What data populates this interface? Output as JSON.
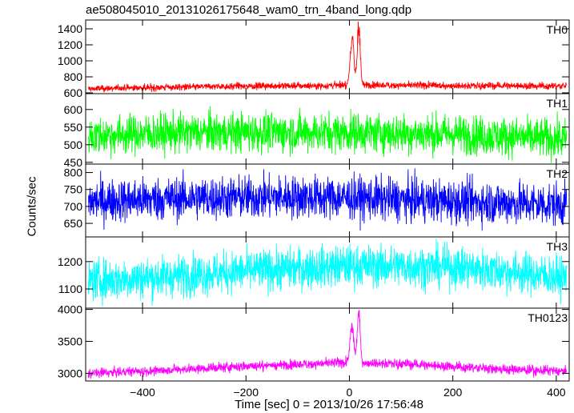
{
  "chart_data": {
    "type": "line",
    "title": "ae508045010_20131026175648_wam0_trn_4band_long.qdp",
    "xlabel": "Time [sec] 0 = 2013/10/26 17:56:48",
    "ylabel": "Counts/sec",
    "xlim": [
      -510,
      425
    ],
    "xticks": [
      -400,
      -200,
      0,
      200,
      400
    ],
    "xtick_labels": [
      "−400",
      "−200",
      "0",
      "200",
      "400"
    ],
    "grid": false,
    "panels": [
      {
        "name": "TH0",
        "color": "#ff0000",
        "ylim": [
          590,
          1510
        ],
        "yticks": [
          600,
          800,
          1000,
          1200,
          1400
        ],
        "ytick_labels": [
          "600",
          "800",
          "1000",
          "1200",
          "1400"
        ],
        "baseline": [
          [
            -510,
            650
          ],
          [
            -400,
            665
          ],
          [
            -200,
            685
          ],
          [
            -50,
            690
          ],
          [
            0,
            700
          ],
          [
            100,
            695
          ],
          [
            200,
            690
          ],
          [
            300,
            690
          ],
          [
            425,
            685
          ]
        ],
        "noise": 22,
        "bursts": [
          [
            5,
            1330,
            5
          ],
          [
            18,
            1500,
            4
          ]
        ]
      },
      {
        "name": "TH1",
        "color": "#00ff00",
        "ylim": [
          445,
          645
        ],
        "yticks": [
          450,
          500,
          550,
          600
        ],
        "ytick_labels": [
          "450",
          "500",
          "550",
          "600"
        ],
        "baseline": [
          [
            -510,
            525
          ],
          [
            -300,
            535
          ],
          [
            -100,
            535
          ],
          [
            0,
            535
          ],
          [
            200,
            530
          ],
          [
            425,
            515
          ]
        ],
        "noise": 28,
        "bursts": []
      },
      {
        "name": "TH2",
        "color": "#0000ff",
        "ylim": [
          610,
          825
        ],
        "yticks": [
          650,
          700,
          750,
          800
        ],
        "ytick_labels": [
          "650",
          "700",
          "750",
          "800"
        ],
        "baseline": [
          [
            -510,
            715
          ],
          [
            -300,
            725
          ],
          [
            -100,
            728
          ],
          [
            0,
            725
          ],
          [
            200,
            715
          ],
          [
            425,
            705
          ]
        ],
        "noise": 32,
        "bursts": []
      },
      {
        "name": "TH3",
        "color": "#00ffff",
        "ylim": [
          1030,
          1290
        ],
        "yticks": [
          1100,
          1200
        ],
        "ytick_labels": [
          "1100",
          "1200"
        ],
        "baseline": [
          [
            -510,
            1130
          ],
          [
            -400,
            1140
          ],
          [
            -200,
            1165
          ],
          [
            0,
            1185
          ],
          [
            200,
            1180
          ],
          [
            300,
            1165
          ],
          [
            425,
            1140
          ]
        ],
        "noise": 38,
        "bursts": []
      },
      {
        "name": "TH0123",
        "color": "#ff00ff",
        "ylim": [
          2880,
          4020
        ],
        "yticks": [
          3000,
          3500,
          4000
        ],
        "ytick_labels": [
          "3000",
          "3500",
          "4000"
        ],
        "baseline": [
          [
            -510,
            3000
          ],
          [
            -400,
            3030
          ],
          [
            -200,
            3110
          ],
          [
            0,
            3170
          ],
          [
            100,
            3150
          ],
          [
            200,
            3110
          ],
          [
            300,
            3060
          ],
          [
            425,
            3030
          ]
        ],
        "noise": 38,
        "bursts": [
          [
            5,
            3780,
            5
          ],
          [
            18,
            4000,
            4
          ]
        ]
      }
    ]
  }
}
